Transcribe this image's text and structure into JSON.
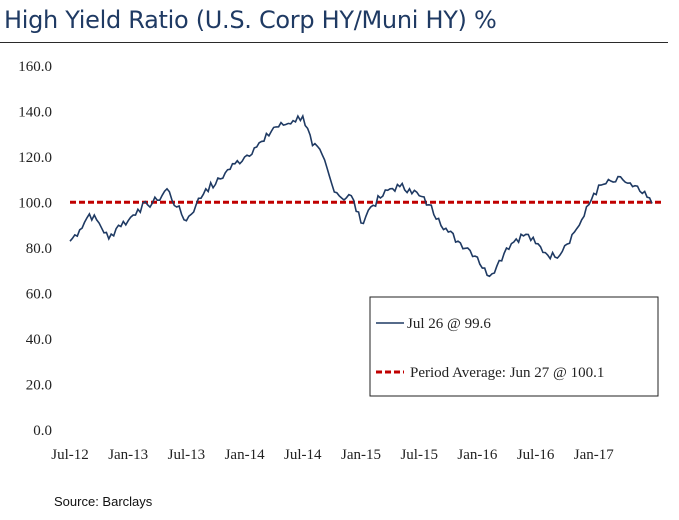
{
  "chart_data": {
    "type": "line",
    "title": "High Yield Ratio (U.S. Corp HY/Muni HY) %",
    "source": "Source: Barclays",
    "ylim": [
      0,
      160
    ],
    "yticks": [
      "0.0",
      "20.0",
      "40.0",
      "60.0",
      "80.0",
      "100.0",
      "120.0",
      "140.0",
      "160.0"
    ],
    "xticks": [
      "Jul-12",
      "Jan-13",
      "Jul-13",
      "Jan-14",
      "Jul-14",
      "Jan-15",
      "Jul-15",
      "Jan-16",
      "Jul-16",
      "Jan-17"
    ],
    "grid": false,
    "legend_placement": "lower-right",
    "series": [
      {
        "name": "Jul 26 @ 99.6",
        "color": "#1f3a63",
        "x": [
          "2012-07",
          "2012-08",
          "2012-09",
          "2012-10",
          "2012-11",
          "2012-12",
          "2013-01",
          "2013-02",
          "2013-03",
          "2013-04",
          "2013-05",
          "2013-06",
          "2013-07",
          "2013-08",
          "2013-09",
          "2013-10",
          "2013-11",
          "2013-12",
          "2014-01",
          "2014-02",
          "2014-03",
          "2014-04",
          "2014-05",
          "2014-06",
          "2014-07",
          "2014-08",
          "2014-09",
          "2014-10",
          "2014-11",
          "2014-12",
          "2015-01",
          "2015-02",
          "2015-03",
          "2015-04",
          "2015-05",
          "2015-06",
          "2015-07",
          "2015-08",
          "2015-09",
          "2015-10",
          "2015-11",
          "2015-12",
          "2016-01",
          "2016-02",
          "2016-03",
          "2016-04",
          "2016-05",
          "2016-06",
          "2016-07",
          "2016-08",
          "2016-09",
          "2016-10",
          "2016-11",
          "2016-12",
          "2017-01",
          "2017-02",
          "2017-03",
          "2017-04",
          "2017-05",
          "2017-06",
          "2017-07"
        ],
        "values": [
          83,
          88,
          95,
          91,
          84,
          90,
          92,
          97,
          99,
          101,
          106,
          98,
          92,
          99,
          106,
          108,
          113,
          117,
          120,
          124,
          127,
          133,
          134,
          136,
          138,
          125,
          121,
          108,
          102,
          103,
          91,
          98,
          102,
          106,
          107,
          106,
          103,
          99,
          93,
          87,
          83,
          80,
          76,
          68,
          72,
          80,
          84,
          86,
          82,
          78,
          76,
          81,
          87,
          94,
          104,
          108,
          109,
          110,
          107,
          104,
          99.6
        ]
      }
    ],
    "reference_line": {
      "name": "Period Average: Jun 27 @ 100.1",
      "value": 100.1,
      "color": "#c00000",
      "style": "dashed"
    }
  }
}
